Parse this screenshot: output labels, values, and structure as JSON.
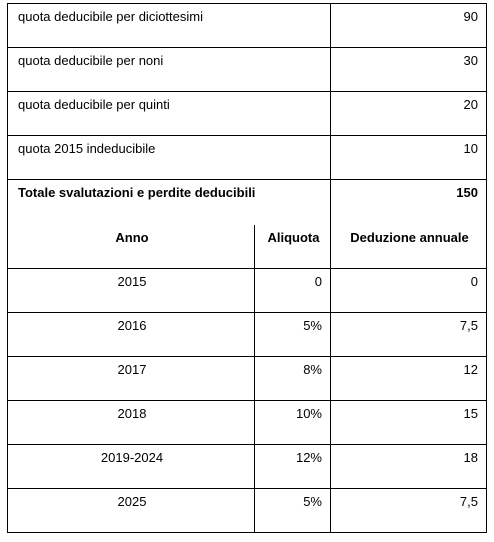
{
  "summary": {
    "rows": [
      [
        "quota deducibile per diciottesimi",
        90
      ],
      [
        "quota deducibile per noni",
        30
      ],
      [
        "quota deducibile per quinti",
        20
      ],
      [
        "quota 2015 indeducibile",
        10
      ],
      [
        "Totale svalutazioni e perdite deducibili",
        150
      ]
    ]
  },
  "table": {
    "header": [
      "Anno",
      "Aliquota",
      "Deduzione annuale"
    ],
    "rows": [
      [
        "2015",
        "0",
        "0"
      ],
      [
        "2016",
        "5%",
        "7,5"
      ],
      [
        "2017",
        "8%",
        "12"
      ],
      [
        "2018",
        "10%",
        "15"
      ],
      [
        "2019-2024",
        "12%",
        "18"
      ],
      [
        "2025",
        "5%",
        "7,5"
      ]
    ]
  }
}
